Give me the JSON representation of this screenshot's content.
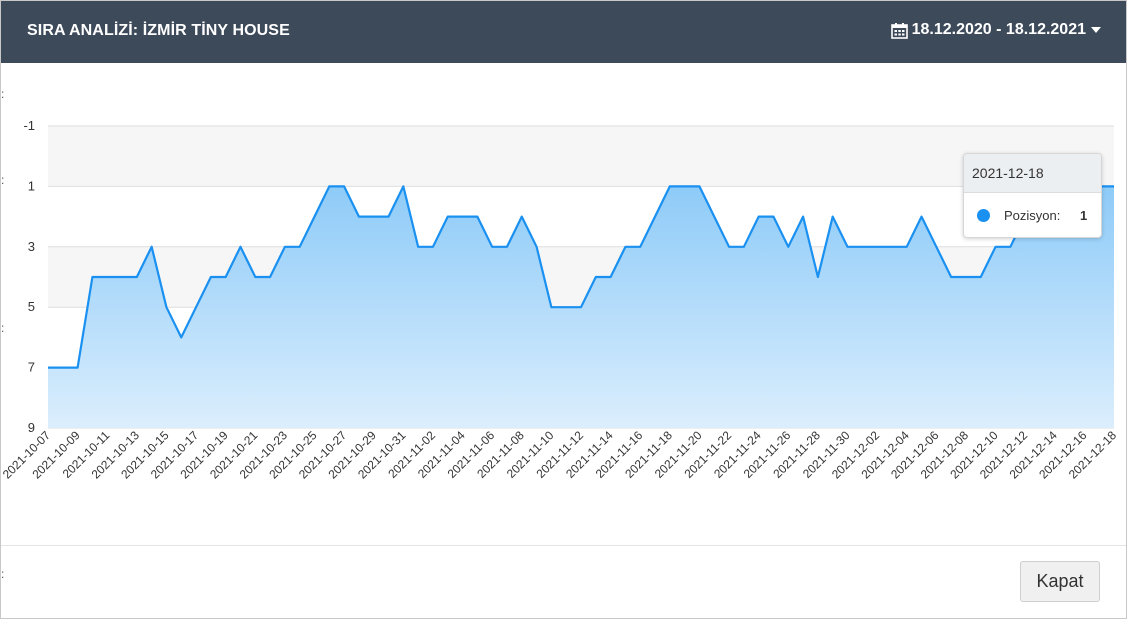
{
  "header": {
    "title": "SIRA ANALİZİ: İZMİR TİNY HOUSE",
    "date_range": "18.12.2020 - 18.12.2021",
    "calendar_icon": "calendar-icon",
    "dropdown_icon": "caret-down-icon"
  },
  "footer": {
    "close_label": "Kapat"
  },
  "tooltip": {
    "date": "2021-12-18",
    "series_label": "Pozisyon:",
    "value": "1"
  },
  "colors": {
    "header_bg": "#3d4a5a",
    "line": "#1a90f0",
    "area_top": "#8ecbf8",
    "area_bottom": "#dbeefd"
  },
  "chart_data": {
    "type": "area",
    "x_tick_labels": [
      "2021-10-07",
      "2021-10-09",
      "2021-10-11",
      "2021-10-13",
      "2021-10-15",
      "2021-10-17",
      "2021-10-19",
      "2021-10-21",
      "2021-10-23",
      "2021-10-25",
      "2021-10-27",
      "2021-10-29",
      "2021-10-31",
      "2021-11-02",
      "2021-11-04",
      "2021-11-06",
      "2021-11-08",
      "2021-11-10",
      "2021-11-12",
      "2021-11-14",
      "2021-11-16",
      "2021-11-18",
      "2021-11-20",
      "2021-11-22",
      "2021-11-24",
      "2021-11-26",
      "2021-11-28",
      "2021-11-30",
      "2021-12-02",
      "2021-12-04",
      "2021-12-06",
      "2021-12-08",
      "2021-12-10",
      "2021-12-12",
      "2021-12-14",
      "2021-12-16",
      "2021-12-18"
    ],
    "y_tick_labels": [
      "-1",
      "1",
      "3",
      "5",
      "7",
      "9"
    ],
    "ylim": [
      -1,
      9
    ],
    "y_reversed": true,
    "grid": true,
    "series": [
      {
        "name": "Pozisyon",
        "values": [
          7,
          7,
          7,
          4,
          4,
          4,
          4,
          3,
          5,
          6,
          5,
          4,
          4,
          3,
          4,
          4,
          3,
          3,
          2,
          1,
          1,
          2,
          2,
          2,
          1,
          3,
          3,
          2,
          2,
          2,
          3,
          3,
          2,
          3,
          5,
          5,
          5,
          4,
          4,
          3,
          3,
          2,
          1,
          1,
          1,
          2,
          3,
          3,
          2,
          2,
          3,
          2,
          4,
          2,
          3,
          3,
          3,
          3,
          3,
          2,
          3,
          4,
          4,
          4,
          3,
          3,
          2,
          2,
          1,
          1,
          1,
          1,
          1
        ]
      }
    ]
  }
}
